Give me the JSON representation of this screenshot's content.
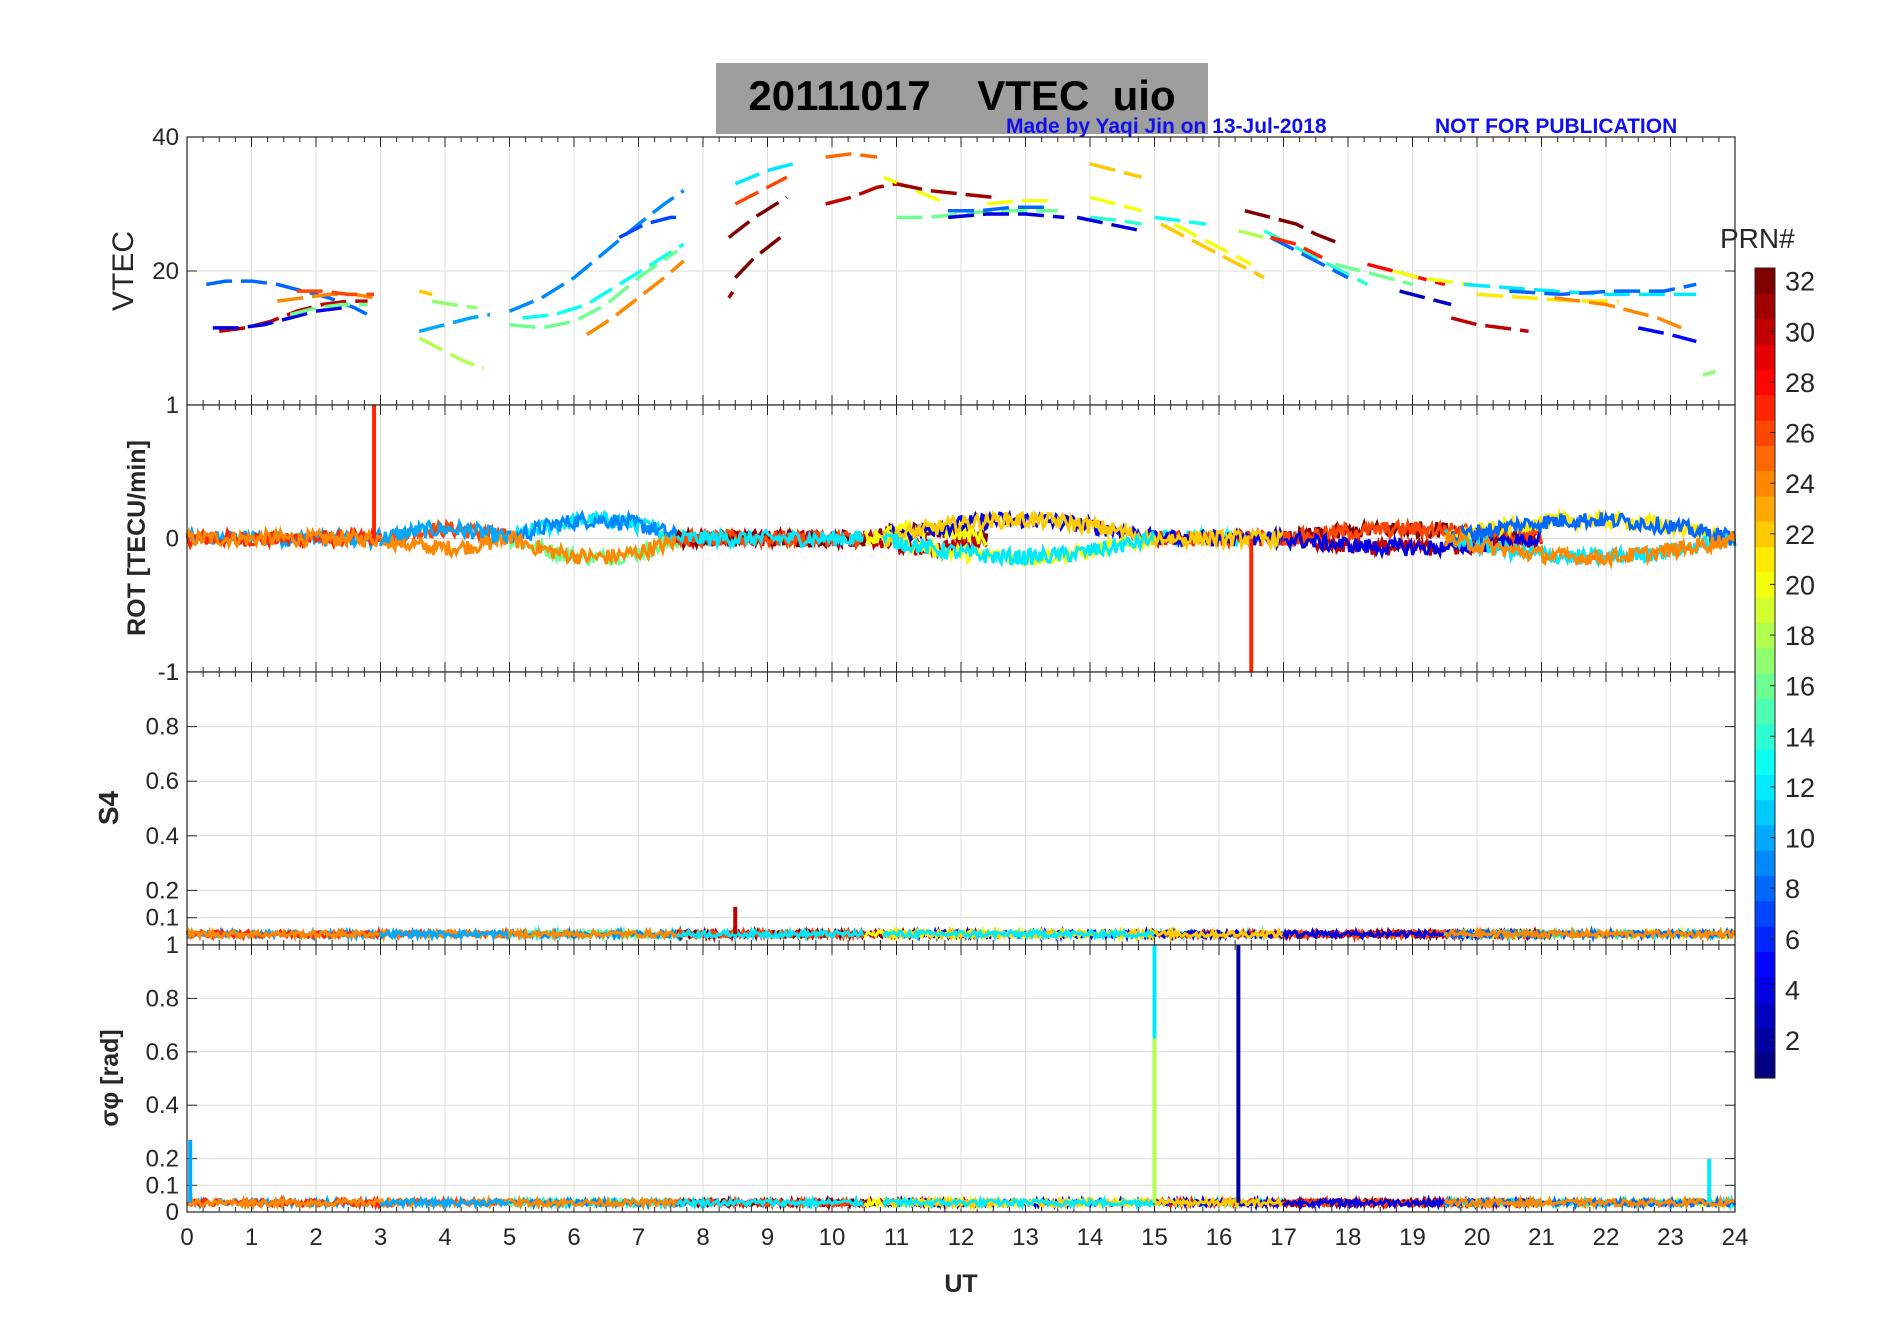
{
  "title": {
    "date": "20111017",
    "quantity": "VTEC",
    "station": "uio"
  },
  "credit": "Made by Yaqi Jin on 13-Jul-2018",
  "notice": "NOT FOR PUBLICATION",
  "colorbar": {
    "label": "PRN#",
    "ticks": [
      "2",
      "4",
      "6",
      "8",
      "10",
      "12",
      "14",
      "16",
      "18",
      "20",
      "22",
      "24",
      "26",
      "28",
      "30",
      "32"
    ],
    "range": [
      1,
      32
    ],
    "colormap": "jet"
  },
  "chart_data": [
    {
      "type": "line",
      "panel": "vtec",
      "ylabel": "VTEC",
      "ylim": [
        0,
        40
      ],
      "yticks": [
        "20",
        "40"
      ],
      "xlim": [
        0,
        24
      ],
      "grid": true,
      "series": [
        {
          "prn": 8,
          "x": [
            0.3,
            0.6,
            1.0,
            1.4,
            1.8,
            2.2,
            2.6,
            2.9
          ],
          "y": [
            18,
            18.5,
            18.5,
            18,
            17,
            16,
            14.5,
            13
          ]
        },
        {
          "prn": 30,
          "x": [
            0.5,
            0.9,
            1.3,
            1.7,
            2.1,
            2.5,
            2.8
          ],
          "y": [
            11,
            11.5,
            12.5,
            14,
            15,
            15.5,
            15.5
          ]
        },
        {
          "prn": 4,
          "x": [
            0.4,
            0.8,
            1.2,
            1.6,
            2.0,
            2.4
          ],
          "y": [
            11.5,
            11.5,
            12,
            13,
            14,
            14.5
          ]
        },
        {
          "prn": 24,
          "x": [
            1.4,
            1.8,
            2.2,
            2.6,
            2.9
          ],
          "y": [
            15.5,
            16,
            16.5,
            16.5,
            16
          ]
        },
        {
          "prn": 16,
          "x": [
            1.6,
            2.0,
            2.4,
            2.8
          ],
          "y": [
            13.5,
            14.5,
            15,
            15
          ]
        },
        {
          "prn": 26,
          "x": [
            1.7,
            2.1,
            2.5,
            2.9
          ],
          "y": [
            17,
            17,
            16.5,
            16.5
          ]
        },
        {
          "prn": 22,
          "x": [
            3.6,
            3.8
          ],
          "y": [
            17,
            16.5
          ]
        },
        {
          "prn": 17,
          "x": [
            3.8,
            4.1,
            4.5
          ],
          "y": [
            15.5,
            15,
            14.5
          ]
        },
        {
          "prn": 10,
          "x": [
            3.6,
            4.0,
            4.4,
            4.7
          ],
          "y": [
            11,
            12,
            13,
            13.5
          ]
        },
        {
          "prn": 18,
          "x": [
            3.6,
            4.0,
            4.3,
            4.6
          ],
          "y": [
            10,
            8,
            6.5,
            5.5
          ]
        },
        {
          "prn": 9,
          "x": [
            5.0,
            5.5,
            6.0,
            6.5,
            7.0,
            7.4,
            7.7
          ],
          "y": [
            14,
            16,
            19,
            23,
            27,
            30,
            32
          ]
        },
        {
          "prn": 7,
          "x": [
            6.7,
            7.1,
            7.5,
            7.7
          ],
          "y": [
            25,
            27,
            28,
            28
          ]
        },
        {
          "prn": 13,
          "x": [
            5.2,
            5.7,
            6.2,
            6.7,
            7.2,
            7.7
          ],
          "y": [
            13,
            13.5,
            15,
            18,
            21,
            24
          ]
        },
        {
          "prn": 16,
          "x": [
            5.0,
            5.5,
            6.0,
            6.5,
            7.0,
            7.6
          ],
          "y": [
            12,
            11.5,
            12.5,
            15,
            19,
            23
          ]
        },
        {
          "prn": 24,
          "x": [
            6.2,
            6.6,
            7.0,
            7.4,
            7.7
          ],
          "y": [
            10.5,
            13,
            16,
            19,
            21.5
          ]
        },
        {
          "prn": 12,
          "x": [
            8.5,
            9.0,
            9.4
          ],
          "y": [
            33,
            35,
            36
          ]
        },
        {
          "prn": 26,
          "x": [
            8.5,
            8.9,
            9.3
          ],
          "y": [
            30,
            32,
            34
          ]
        },
        {
          "prn": 32,
          "x": [
            8.4,
            8.8,
            9.3
          ],
          "y": [
            25,
            28,
            31
          ]
        },
        {
          "prn": 32,
          "x": [
            8.5,
            8.8,
            9.2
          ],
          "y": [
            19,
            22,
            25
          ]
        },
        {
          "prn": 31,
          "x": [
            8.4
          ],
          "y": [
            16
          ]
        },
        {
          "prn": 25,
          "x": [
            9.9,
            10.3,
            10.7
          ],
          "y": [
            37,
            37.5,
            37
          ]
        },
        {
          "prn": 30,
          "x": [
            9.9,
            10.3,
            10.7,
            11.0
          ],
          "y": [
            30,
            31,
            32.5,
            33
          ]
        },
        {
          "prn": 20,
          "x": [
            10.8,
            11.3,
            11.8
          ],
          "y": [
            34,
            32,
            30
          ]
        },
        {
          "prn": 31,
          "x": [
            11.0,
            11.5,
            12.0,
            12.5
          ],
          "y": [
            33,
            32,
            31.5,
            31
          ]
        },
        {
          "prn": 16,
          "x": [
            11.0,
            11.5,
            12.0,
            12.5,
            13.0,
            13.5
          ],
          "y": [
            28,
            28,
            28.5,
            29,
            29,
            29
          ]
        },
        {
          "prn": 8,
          "x": [
            11.8,
            12.3,
            12.8,
            13.3
          ],
          "y": [
            29,
            29,
            29.5,
            29.5
          ]
        },
        {
          "prn": 4,
          "x": [
            11.8,
            12.4,
            13.0,
            13.6
          ],
          "y": [
            28,
            28.5,
            28.5,
            28
          ]
        },
        {
          "prn": 20,
          "x": [
            12.4,
            12.9,
            13.4
          ],
          "y": [
            30,
            30.5,
            30.5
          ]
        },
        {
          "prn": 22,
          "x": [
            14.0,
            14.4,
            14.8
          ],
          "y": [
            36,
            35,
            34
          ]
        },
        {
          "prn": 20,
          "x": [
            14.0,
            14.4,
            14.8
          ],
          "y": [
            31,
            30,
            29
          ]
        },
        {
          "prn": 14,
          "x": [
            14.0,
            14.5,
            14.8
          ],
          "y": [
            28,
            27.5,
            27
          ]
        },
        {
          "prn": 4,
          "x": [
            13.8,
            14.3,
            14.8
          ],
          "y": [
            28,
            27,
            26
          ]
        },
        {
          "prn": 13,
          "x": [
            15.0,
            15.4,
            15.8
          ],
          "y": [
            28,
            27.5,
            27
          ]
        },
        {
          "prn": 22,
          "x": [
            15.1,
            15.5,
            15.9,
            16.3,
            16.7
          ],
          "y": [
            27,
            25,
            23,
            21,
            19
          ]
        },
        {
          "prn": 20,
          "x": [
            15.3,
            15.7,
            16.1,
            16.5
          ],
          "y": [
            27,
            25,
            23,
            21
          ]
        },
        {
          "prn": 18,
          "x": [
            16.3,
            16.7,
            17.1
          ],
          "y": [
            26,
            25,
            24
          ]
        },
        {
          "prn": 32,
          "x": [
            16.4,
            16.8,
            17.2,
            17.5,
            17.9
          ],
          "y": [
            29,
            28,
            27,
            25.5,
            24
          ]
        },
        {
          "prn": 14,
          "x": [
            16.7,
            17.1,
            17.5,
            17.9,
            18.3
          ],
          "y": [
            26,
            24,
            22,
            20,
            18
          ]
        },
        {
          "prn": 8,
          "x": [
            16.8,
            17.2,
            17.6,
            18.0
          ],
          "y": [
            25,
            23,
            21,
            19
          ]
        },
        {
          "prn": 27,
          "x": [
            16.8,
            17.2,
            17.6
          ],
          "y": [
            25,
            24,
            22
          ]
        },
        {
          "prn": 16,
          "x": [
            17.8,
            18.2,
            18.6,
            19.0
          ],
          "y": [
            21,
            20,
            19,
            18
          ]
        },
        {
          "prn": 28,
          "x": [
            18.3,
            18.7,
            19.1,
            19.5
          ],
          "y": [
            21,
            20,
            19,
            18
          ]
        },
        {
          "prn": 20,
          "x": [
            18.7,
            19.1,
            19.5,
            19.9
          ],
          "y": [
            20,
            19,
            18.5,
            18
          ]
        },
        {
          "prn": 3,
          "x": [
            18.8,
            19.2,
            19.6
          ],
          "y": [
            17,
            16,
            15
          ]
        },
        {
          "prn": 30,
          "x": [
            19.6,
            20.0,
            20.4,
            20.8
          ],
          "y": [
            13,
            12,
            11.5,
            11
          ]
        },
        {
          "prn": 12,
          "x": [
            19.8,
            20.5,
            21.2,
            22.0,
            22.8,
            23.4
          ],
          "y": [
            18,
            17.5,
            17,
            16.5,
            16.5,
            16.5
          ]
        },
        {
          "prn": 21,
          "x": [
            20.0,
            20.8,
            21.5,
            22.2
          ],
          "y": [
            16.5,
            16,
            15.5,
            15.5
          ]
        },
        {
          "prn": 8,
          "x": [
            20.5,
            21.3,
            22.1,
            22.9,
            23.4
          ],
          "y": [
            17,
            16.5,
            17,
            17,
            18
          ]
        },
        {
          "prn": 24,
          "x": [
            21.2,
            22.0,
            22.8,
            23.3
          ],
          "y": [
            16,
            15,
            13,
            11
          ]
        },
        {
          "prn": 5,
          "x": [
            22.5,
            23.0,
            23.4
          ],
          "y": [
            11.5,
            10.5,
            9.5
          ]
        },
        {
          "prn": 17,
          "x": [
            23.5,
            23.7
          ],
          "y": [
            4.5,
            5
          ]
        }
      ]
    },
    {
      "type": "line",
      "panel": "rot",
      "ylabel": "ROT [TECU/min]",
      "ylim": [
        -1,
        1
      ],
      "yticks": [
        "-1",
        "0",
        "1"
      ],
      "xlim": [
        0,
        24
      ],
      "grid": true,
      "note": "noisy traces around zero for all PRNs",
      "spikes": [
        {
          "prn": 27,
          "x": 2.9,
          "y": 1.0
        },
        {
          "prn": 27,
          "x": 16.5,
          "y": -1.0
        }
      ]
    },
    {
      "type": "line",
      "panel": "s4",
      "ylabel": "S4",
      "ylim": [
        0,
        1
      ],
      "yticks": [
        "0.1",
        "0.2",
        "0.4",
        "0.6",
        "0.8",
        "1"
      ],
      "xlim": [
        0,
        24
      ],
      "grid": true,
      "note": "noisy traces near 0.05 for all PRNs",
      "peaks": [
        {
          "prn": 30,
          "x": 8.5,
          "y": 0.14
        }
      ]
    },
    {
      "type": "line",
      "panel": "sigma_phi",
      "ylabel": "σφ [rad]",
      "ylim": [
        0,
        1
      ],
      "yticks": [
        "0",
        "0.1",
        "0.2",
        "0.4",
        "0.6",
        "0.8",
        "1"
      ],
      "xlim": [
        0,
        24
      ],
      "xticks": [
        "0",
        "1",
        "2",
        "3",
        "4",
        "5",
        "6",
        "7",
        "8",
        "9",
        "10",
        "11",
        "12",
        "13",
        "14",
        "15",
        "16",
        "17",
        "18",
        "19",
        "20",
        "21",
        "22",
        "23",
        "24"
      ],
      "xlabel": "UT",
      "grid": true,
      "note": "noisy traces near 0.04 for all PRNs",
      "spikes": [
        {
          "prn": 12,
          "x": 15.0,
          "y": 1.0
        },
        {
          "prn": 18,
          "x": 15.0,
          "y": 0.65
        },
        {
          "prn": 2,
          "x": 16.3,
          "y": 1.0
        },
        {
          "prn": 10,
          "x": 0.05,
          "y": 0.27
        },
        {
          "prn": 12,
          "x": 23.6,
          "y": 0.2
        }
      ]
    }
  ]
}
